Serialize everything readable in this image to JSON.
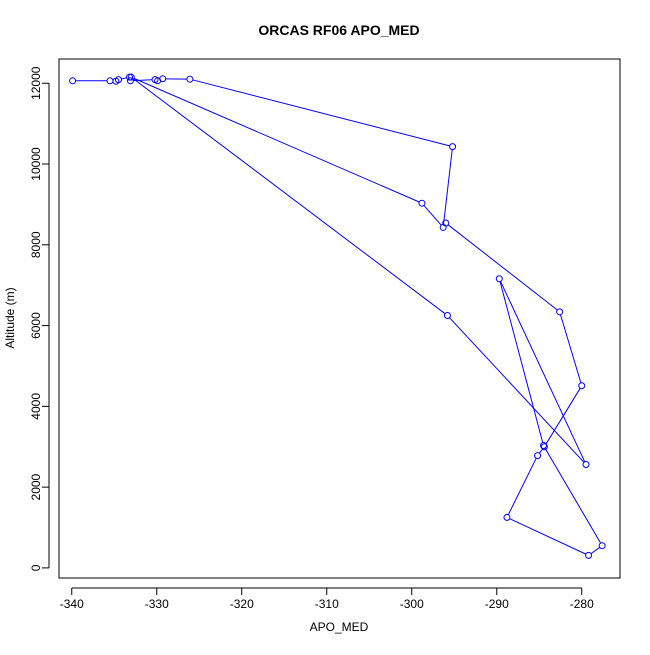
{
  "chart_data": {
    "type": "line",
    "title": "ORCAS RF06 APO_MED",
    "xlabel": "APO_MED",
    "ylabel": "Altitude (m)",
    "xlim": [
      -341.5,
      -275.5
    ],
    "ylim": [
      -250,
      12600
    ],
    "xticks": [
      -340,
      -330,
      -320,
      -310,
      -300,
      -290,
      -280
    ],
    "yticks": [
      0,
      2000,
      4000,
      6000,
      8000,
      10000,
      12000
    ],
    "grid": false,
    "legend": "none",
    "series_color": "#0000ff",
    "points": [
      {
        "x": -339.9,
        "y": 12060
      },
      {
        "x": -335.5,
        "y": 12060
      },
      {
        "x": -334.8,
        "y": 12050
      },
      {
        "x": -334.5,
        "y": 12090
      },
      {
        "x": -333.2,
        "y": 12150
      },
      {
        "x": -333.1,
        "y": 12060
      },
      {
        "x": -330.2,
        "y": 12090
      },
      {
        "x": -329.9,
        "y": 12060
      },
      {
        "x": -329.3,
        "y": 12110
      },
      {
        "x": -326.1,
        "y": 12100
      },
      {
        "x": -295.2,
        "y": 10430
      },
      {
        "x": -296.3,
        "y": 8430
      },
      {
        "x": -298.8,
        "y": 9030
      },
      {
        "x": -333.0,
        "y": 12150
      },
      {
        "x": -295.8,
        "y": 6250
      },
      {
        "x": -279.5,
        "y": 2560
      },
      {
        "x": -289.7,
        "y": 7160
      },
      {
        "x": -284.5,
        "y": 3030
      },
      {
        "x": -277.6,
        "y": 550
      },
      {
        "x": -279.2,
        "y": 310
      },
      {
        "x": -288.8,
        "y": 1250
      },
      {
        "x": -285.2,
        "y": 2780
      },
      {
        "x": -284.4,
        "y": 3000
      },
      {
        "x": -280.0,
        "y": 4510
      },
      {
        "x": -282.6,
        "y": 6340
      },
      {
        "x": -296.0,
        "y": 8540
      }
    ]
  }
}
